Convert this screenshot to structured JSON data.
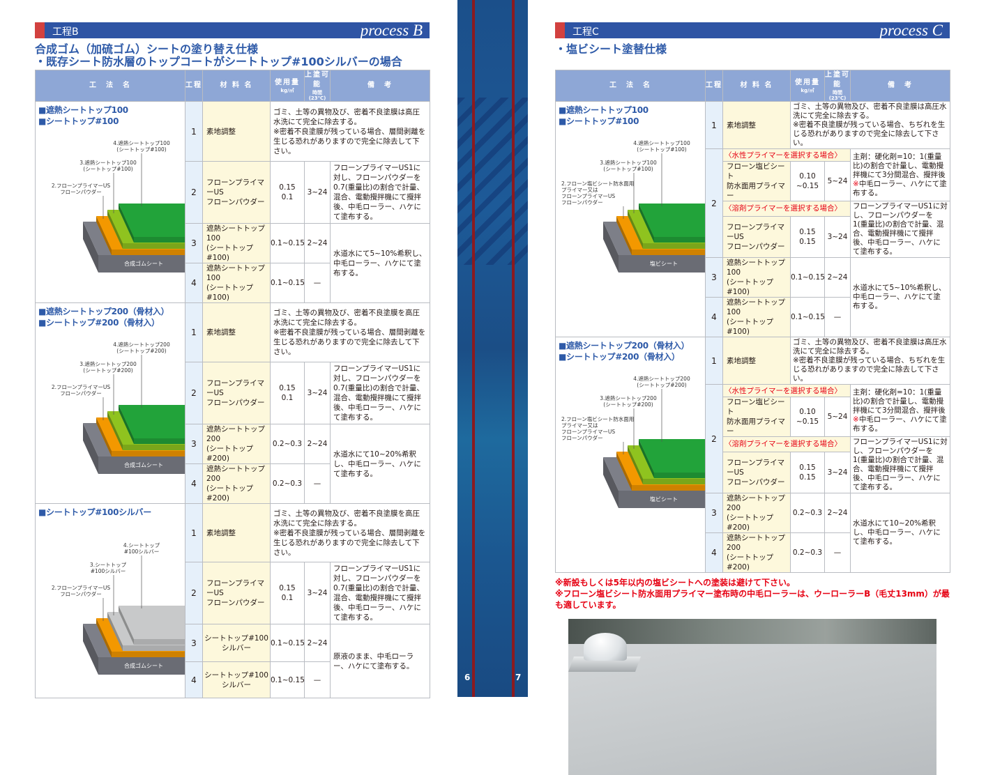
{
  "columns": {
    "name": "工　法　名",
    "step": "工程",
    "material": "材 料 名",
    "usage": [
      "使用量",
      "kg/㎡"
    ],
    "interval": [
      "上塗可能",
      "時間(23℃)"
    ],
    "remarks": "備　考"
  },
  "layer_colors": {
    "base": "#7d7f88",
    "orange": "#f39800",
    "light_green": "#8fc31f",
    "green": "#22a33a",
    "silver": "#c8c9ca"
  },
  "left": {
    "header": {
      "label": "工程B",
      "process": "process B"
    },
    "subtitle": [
      "合成ゴム（加硫ゴム）シートの塗り替え仕様",
      "・既存シート防水層のトップコートがシートトップ#100シルバーの場合"
    ],
    "sections": [
      {
        "names": [
          "■遮熱シートトップ100",
          "■シートトップ#100"
        ],
        "layers": "green",
        "substrate": "合成ゴムシート",
        "labels": {
          "l2": [
            "2.フローンプライマーUS",
            "フローンパウダー"
          ],
          "l3": [
            "3.遮熱シートトップ100",
            "(シートトップ#100)"
          ],
          "l4": [
            "4.遮熱シートトップ100",
            "(シートトップ#100)"
          ]
        },
        "steps": [
          {
            "no": "1",
            "material": "素地調整",
            "remark": "ゴミ、土等の異物及び、密着不良塗膜は高圧水洗にて完全に除去する。",
            "note": "※密着不良塗膜が残っている場合、層間剥離を生じる恐れがありますので完全に除去して下さい。"
          },
          {
            "no": "2",
            "material": [
              "フローンプライマーUS",
              "フローンパウダー"
            ],
            "usage": [
              "0.15",
              "0.1"
            ],
            "interval": "3~24",
            "remark": "フローンプライマーUS1に対し、フローンパウダーを0.7(重量比)の割合で計量、混合、電動攪拌機にて攪拌後、中毛ローラー、ハケにて塗布する。"
          },
          {
            "no": "3",
            "material": [
              "遮熱シートトップ100",
              "(シートトップ#100)"
            ],
            "usage": "0.1~0.15",
            "interval": "2~24"
          },
          {
            "no": "4",
            "material": [
              "遮熱シートトップ100",
              "(シートトップ#100)"
            ],
            "usage": "0.1~0.15",
            "interval": "—"
          }
        ],
        "finish_remark": "水道水にて5~10%希釈し、中毛ローラー、ハケにて塗布する。"
      },
      {
        "names": [
          "■遮熱シートトップ200（骨材入）",
          "■シートトップ#200（骨材入）"
        ],
        "layers": "green",
        "substrate": "合成ゴムシート",
        "labels": {
          "l2": [
            "2.フローンプライマーUS",
            "フローンパウダー"
          ],
          "l3": [
            "3.遮熱シートトップ200",
            "(シートトップ#200)"
          ],
          "l4": [
            "4.遮熱シートトップ200",
            "(シートトップ#200)"
          ]
        },
        "steps": [
          {
            "no": "1",
            "material": "素地調整",
            "remark": "ゴミ、土等の異物及び、密着不良塗膜を高圧水洗にて完全に除去する。",
            "note": "※密着不良塗膜が残っている場合、層間剥離を生じる恐れがありますので完全に除去して下さい。"
          },
          {
            "no": "2",
            "material": [
              "フローンプライマーUS",
              "フローンパウダー"
            ],
            "usage": [
              "0.15",
              "0.1"
            ],
            "interval": "3~24",
            "remark": "フローンプライマーUS1に対し、フローンパウダーを0.7(重量比)の割合で計量、混合、電動攪拌機にて攪拌後、中毛ローラー、ハケにて塗布する。"
          },
          {
            "no": "3",
            "material": [
              "遮熱シートトップ200",
              "(シートトップ#200)"
            ],
            "usage": "0.2~0.3",
            "interval": "2~24"
          },
          {
            "no": "4",
            "material": [
              "遮熱シートトップ200",
              "(シートトップ#200)"
            ],
            "usage": "0.2~0.3",
            "interval": "—"
          }
        ],
        "finish_remark": "水道水にて10~20%希釈し、中毛ローラー、ハケにて塗布する。"
      },
      {
        "names": [
          "■シートトップ#100シルバー"
        ],
        "layers": "silver",
        "substrate": "合成ゴムシート",
        "labels": {
          "l2": [
            "2.フローンプライマーUS",
            "フローンパウダー"
          ],
          "l3": [
            "3.シートトップ",
            "#100シルバー"
          ],
          "l4": [
            "4.シートトップ",
            "#100シルバー"
          ]
        },
        "steps": [
          {
            "no": "1",
            "material": "素地調整",
            "remark": "ゴミ、土等の異物及び、密着不良塗膜を高圧水洗にて完全に除去する。",
            "note": "※密着不良塗膜が残っている場合、層間剥離を生じる恐れがありますので完全に除去して下さい。"
          },
          {
            "no": "2",
            "material": [
              "フローンプライマーUS",
              "フローンパウダー"
            ],
            "usage": [
              "0.15",
              "0.1"
            ],
            "interval": "3~24",
            "remark": "フローンプライマーUS1に対し、フローンパウダーを0.7(重量比)の割合で計量、混合、電動攪拌機にて攪拌後、中毛ローラー、ハケにて塗布する。"
          },
          {
            "no": "3",
            "material": [
              "シートトップ#100",
              "シルバー"
            ],
            "usage": "0.1~0.15",
            "interval": "2~24"
          },
          {
            "no": "4",
            "material": [
              "シートトップ#100",
              "シルバー"
            ],
            "usage": "0.1~0.15",
            "interval": "—"
          }
        ],
        "finish_remark": "原液のまま、中毛ローラー、ハケにて塗布する。"
      }
    ]
  },
  "right": {
    "header": {
      "label": "工程C",
      "process": "process C"
    },
    "subtitle": [
      "・塩ビシート塗替仕様"
    ],
    "sections": [
      {
        "names": [
          "■遮熱シートトップ100",
          "■シートトップ#100"
        ],
        "layers": "green",
        "substrate": "塩ビシート",
        "labels": {
          "l2": [
            "2.フローン塩ビシート防水面用",
            "プライマー又は",
            "フローンプライマーUS",
            "フローンパウダー"
          ],
          "l3": [
            "3.遮熱シートトップ100",
            "(シートトップ#100)"
          ],
          "l4": [
            "4.遮熱シートトップ100",
            "(シートトップ#100)"
          ]
        },
        "steps": [
          {
            "no": "1",
            "material": "素地調整",
            "remark": "ゴミ、土等の異物及び、密着不良塗膜は高圧水洗にて完全に除去する。",
            "note": "※密着不良塗膜が残っている場合、ちぢれを生じる恐れがありますので完全に除去して下さい。"
          },
          {
            "no": "2",
            "options": [
              {
                "label": "〈水性プライマーを選択する場合〉",
                "material": [
                  "フローン塩ビシート",
                  "防水面用プライマー"
                ],
                "usage": [
                  "0.10",
                  "~0.15"
                ],
                "interval": "5~24",
                "remark": "主剤：硬化剤=10：1(重量比)の割合で計量し、電動攪拌機にて3分間混合、攪拌後",
                "remark_mark": "※",
                "remark_after": "中毛ローラー、ハケにて塗布する。"
              },
              {
                "label": "〈溶剤プライマーを選択する場合〉",
                "material": [
                  "フローンプライマーUS",
                  "フローンパウダー"
                ],
                "usage": [
                  "0.15",
                  "0.15"
                ],
                "interval": "3~24",
                "remark": "フローンプライマーUS1に対し、フローンパウダーを1(重量比)の割合で計量、混合、電動攪拌機にて攪拌後、中毛ローラー、ハケにて塗布する。"
              }
            ]
          },
          {
            "no": "3",
            "material": [
              "遮熱シートトップ100",
              "(シートトップ#100)"
            ],
            "usage": "0.1~0.15",
            "interval": "2~24"
          },
          {
            "no": "4",
            "material": [
              "遮熱シートトップ100",
              "(シートトップ#100)"
            ],
            "usage": "0.1~0.15",
            "interval": "—"
          }
        ],
        "finish_remark": "水道水にて5~10%希釈し、中毛ローラー、ハケにて塗布する。"
      },
      {
        "names": [
          "■遮熱シートトップ200（骨材入）",
          "■シートトップ#200（骨材入）"
        ],
        "layers": "green",
        "substrate": "塩ビシート",
        "labels": {
          "l2": [
            "2.フローン塩ビシート防水面用",
            "プライマー又は",
            "フローンプライマーUS",
            "フローンパウダー"
          ],
          "l3": [
            "3.遮熱シートトップ200",
            "(シートトップ#200)"
          ],
          "l4": [
            "4.遮熱シートトップ200",
            "(シートトップ#200)"
          ]
        },
        "steps": [
          {
            "no": "1",
            "material": "素地調整",
            "remark": "ゴミ、土等の異物及び、密着不良塗膜は高圧水洗にて完全に除去する。",
            "note": "※密着不良塗膜が残っている場合、ちぢれを生じる恐れがありますので完全に除去して下さい。"
          },
          {
            "no": "2",
            "options": [
              {
                "label": "〈水性プライマーを選択する場合〉",
                "material": [
                  "フローン塩ビシート",
                  "防水面用プライマー"
                ],
                "usage": [
                  "0.10",
                  "~0.15"
                ],
                "interval": "5~24",
                "remark": "主剤：硬化剤=10：1(重量比)の割合で計量し、電動攪拌機にて3分間混合、攪拌後",
                "remark_mark": "※",
                "remark_after": "中毛ローラー、ハケにて塗布する。"
              },
              {
                "label": "〈溶剤プライマーを選択する場合〉",
                "material": [
                  "フローンプライマーUS",
                  "フローンパウダー"
                ],
                "usage": [
                  "0.15",
                  "0.15"
                ],
                "interval": "3~24",
                "remark": "フローンプライマーUS1に対し、フローンパウダーを1(重量比)の割合で計量、混合、電動攪拌機にて攪拌後、中毛ローラー、ハケにて塗布する。"
              }
            ]
          },
          {
            "no": "3",
            "material": [
              "遮熱シートトップ200",
              "(シートトップ#200)"
            ],
            "usage": "0.2~0.3",
            "interval": "2~24"
          },
          {
            "no": "4",
            "material": [
              "遮熱シートトップ200",
              "(シートトップ#200)"
            ],
            "usage": "0.2~0.3",
            "interval": "—"
          }
        ],
        "finish_remark": "水道水にて10~20%希釈し、中毛ローラー、ハケにて塗布する。"
      }
    ],
    "notes": [
      "※新設もしくは5年以内の塩ビシートへの塗装は避けて下さい。",
      "※フローン塩ビシート防水面用プライマー塗布時の中毛ローラーは、ウーローラーB（毛丈13mm）が最も適しています。"
    ]
  },
  "page_numbers": {
    "left": "6",
    "right": "7"
  }
}
